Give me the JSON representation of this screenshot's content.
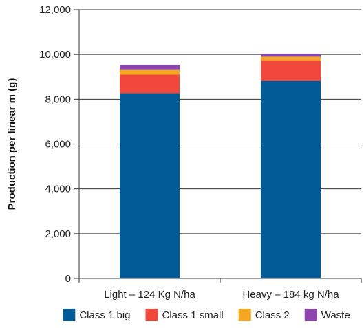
{
  "chart_data": {
    "type": "bar",
    "stacked": true,
    "categories": [
      "Light – 124 Kg N/ha",
      "Heavy – 184 kg N/ha"
    ],
    "series": [
      {
        "name": "Class 1 big",
        "color": "#005b96",
        "values": [
          8270,
          8820
        ]
      },
      {
        "name": "Class 1 small",
        "color": "#f0483a",
        "values": [
          830,
          920
        ]
      },
      {
        "name": "Class 2",
        "color": "#f5a623",
        "values": [
          210,
          160
        ]
      },
      {
        "name": "Waste",
        "color": "#8e44ad",
        "values": [
          220,
          120
        ]
      }
    ],
    "title": "",
    "xlabel": "",
    "ylabel": "Production per linear m (g)",
    "ylim": [
      0,
      12000
    ],
    "yticks": [
      0,
      2000,
      4000,
      6000,
      8000,
      10000,
      12000
    ],
    "ytick_labels": [
      "0",
      "2,000",
      "4,000",
      "6,000",
      "8,000",
      "10,000",
      "12,000"
    ],
    "grid": "horizontal",
    "legend_position": "bottom"
  }
}
